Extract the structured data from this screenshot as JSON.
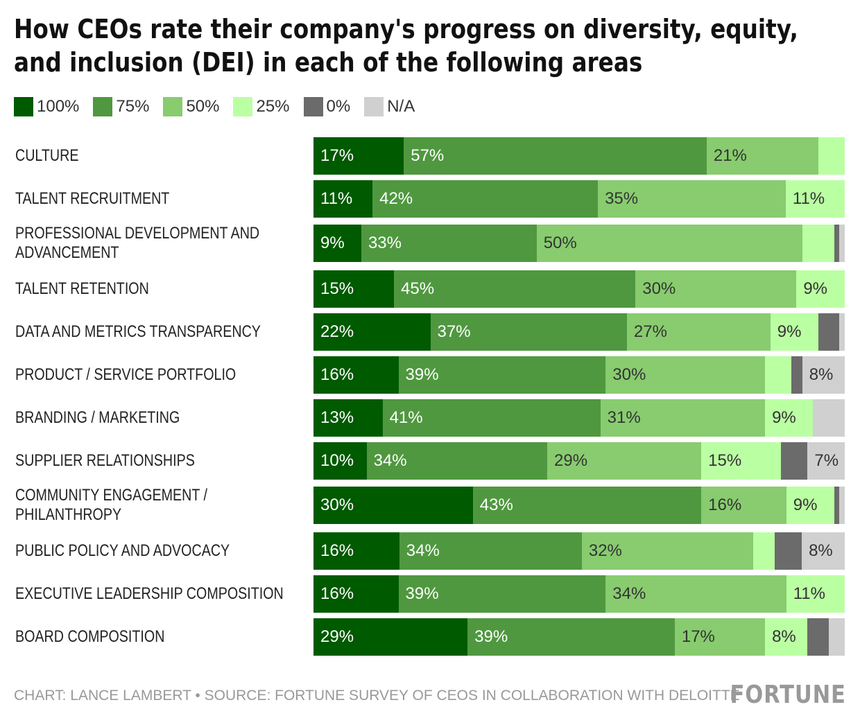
{
  "title": "How CEOs rate their company's progress on diversity, equity, and inclusion (DEI) in each of the following areas",
  "footer": "CHART: LANCE LAMBERT • SOURCE: FORTUNE SURVEY OF CEOS IN COLLABORATION WITH DELOITTE",
  "logo": "FORTUNE",
  "chart_data": {
    "type": "bar",
    "orientation": "horizontal-stacked-100",
    "legend_placement": "top-left",
    "grid": false,
    "series": [
      {
        "name": "100%",
        "color": "#005a00",
        "text_color": "#ffffff",
        "values": [
          17,
          11,
          9,
          15,
          22,
          16,
          13,
          10,
          30,
          16,
          16,
          29
        ]
      },
      {
        "name": "75%",
        "color": "#4f983f",
        "text_color": "#ffffff",
        "values": [
          57,
          42,
          33,
          45,
          37,
          39,
          41,
          34,
          43,
          34,
          39,
          39
        ]
      },
      {
        "name": "50%",
        "color": "#88cc6f",
        "text_color": "#333333",
        "values": [
          21,
          35,
          50,
          30,
          27,
          30,
          31,
          29,
          16,
          32,
          34,
          17
        ]
      },
      {
        "name": "25%",
        "color": "#bbffa3",
        "text_color": "#333333",
        "values": [
          5,
          11,
          6,
          9,
          9,
          5,
          9,
          15,
          9,
          4,
          11,
          8
        ]
      },
      {
        "name": "0%",
        "color": "#6b6b6b",
        "text_color": "#ffffff",
        "values": [
          0,
          0,
          1,
          0,
          4,
          2,
          0,
          5,
          1,
          5,
          0,
          4
        ]
      },
      {
        "name": "N/A",
        "color": "#d0d0d0",
        "text_color": "#333333",
        "values": [
          0,
          0,
          1,
          0,
          1,
          8,
          6,
          7,
          1,
          8,
          0,
          3
        ]
      }
    ],
    "categories": [
      "CULTURE",
      "TALENT RECRUITMENT",
      "PROFESSIONAL DEVELOPMENT AND ADVANCEMENT",
      "TALENT RETENTION",
      "DATA AND METRICS TRANSPARENCY",
      "PRODUCT / SERVICE PORTFOLIO",
      "BRANDING / MARKETING",
      "SUPPLIER RELATIONSHIPS",
      "COMMUNITY ENGAGEMENT / PHILANTHROPY",
      "PUBLIC POLICY AND ADVOCACY",
      "EXECUTIVE LEADERSHIP COMPOSITION",
      "BOARD COMPOSITION"
    ],
    "xlim": [
      0,
      100
    ]
  }
}
